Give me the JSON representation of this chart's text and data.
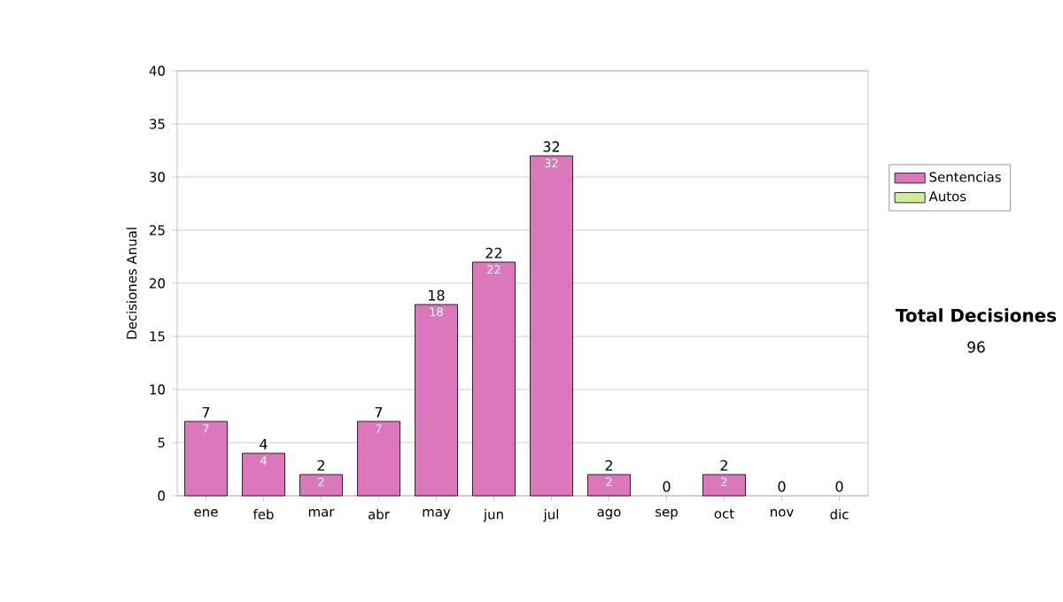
{
  "chart_data": {
    "type": "bar",
    "stacked": true,
    "ylabel": "Decisiones Anual",
    "categories": [
      "ene",
      "feb",
      "mar",
      "abr",
      "may",
      "jun",
      "jul",
      "ago",
      "sep",
      "oct",
      "nov",
      "dic"
    ],
    "series": [
      {
        "name": "Sentencias",
        "color": "#dd77bb",
        "values": [
          7,
          4,
          2,
          7,
          18,
          22,
          32,
          2,
          0,
          2,
          0,
          0
        ],
        "value_labels": [
          "7",
          "4",
          "2",
          "7",
          "18",
          "22",
          "32",
          "2",
          null,
          "2",
          null,
          null
        ]
      },
      {
        "name": "Autos",
        "color": "#ccee99",
        "values": [
          0,
          0,
          0,
          0,
          0,
          0,
          0,
          0,
          0,
          0,
          0,
          0
        ]
      }
    ],
    "totals": [
      "7",
      "4",
      "2",
      "7",
      "18",
      "22",
      "32",
      "2",
      "0",
      "2",
      "0",
      "0"
    ],
    "ylim": [
      0,
      40
    ],
    "yticks": [
      0,
      5,
      10,
      15,
      20,
      25,
      30,
      35,
      40
    ],
    "grid": "y",
    "legend": "right",
    "annotations": [
      "Total Decisiones",
      "96"
    ]
  }
}
